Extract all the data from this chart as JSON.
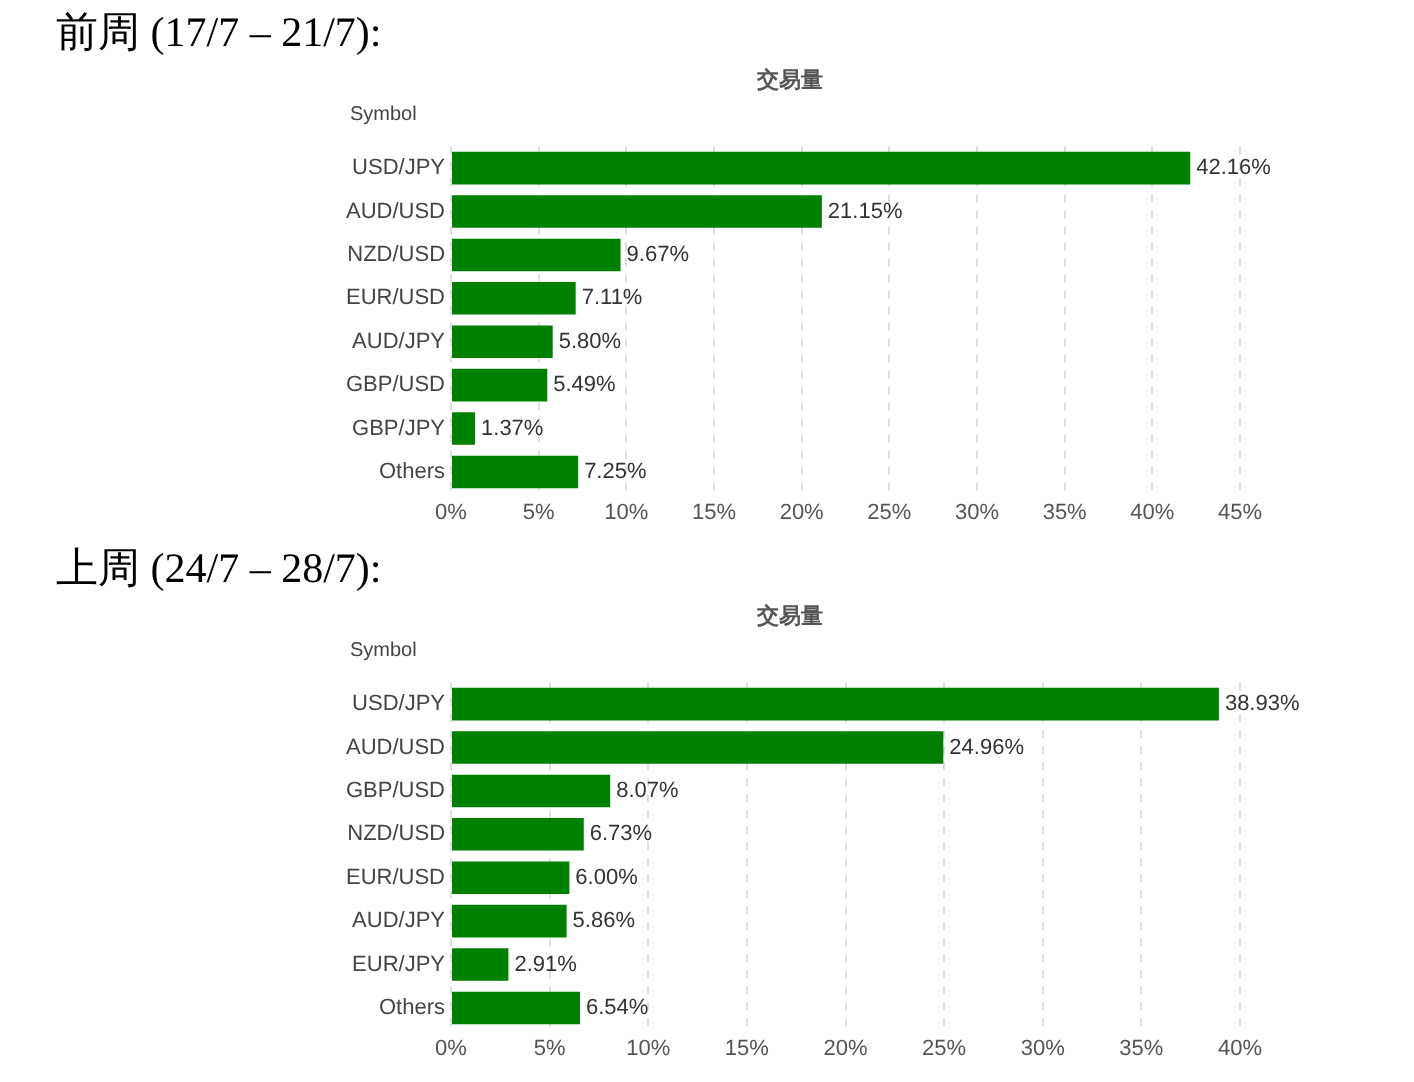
{
  "chart_data": [
    {
      "type": "bar",
      "orientation": "horizontal",
      "title": "前周 (17/7 – 21/7):",
      "subtitle": "交易量",
      "ylabel": "Symbol",
      "categories": [
        "USD/JPY",
        "AUD/USD",
        "NZD/USD",
        "EUR/USD",
        "AUD/JPY",
        "GBP/USD",
        "GBP/JPY",
        "Others"
      ],
      "values": [
        42.16,
        21.15,
        9.67,
        7.11,
        5.8,
        5.49,
        1.37,
        7.25
      ],
      "value_labels": [
        "42.16%",
        "21.15%",
        "9.67%",
        "7.11%",
        "5.80%",
        "5.49%",
        "1.37%",
        "7.25%"
      ],
      "color": "#008000",
      "xlim": [
        0,
        45
      ],
      "xticks": [
        {
          "value": 0,
          "label": "0%"
        },
        {
          "value": 5,
          "label": "5%"
        },
        {
          "value": 10,
          "label": "10%"
        },
        {
          "value": 15,
          "label": "15%"
        },
        {
          "value": 20,
          "label": "20%"
        },
        {
          "value": 25,
          "label": "25%"
        },
        {
          "value": 30,
          "label": "30%"
        },
        {
          "value": 35,
          "label": "35%"
        },
        {
          "value": 40,
          "label": "40%"
        },
        {
          "value": 45,
          "label": "45%"
        }
      ],
      "grid": "x",
      "legend": false
    },
    {
      "type": "bar",
      "orientation": "horizontal",
      "title": "上周 (24/7 – 28/7):",
      "subtitle": "交易量",
      "ylabel": "Symbol",
      "categories": [
        "USD/JPY",
        "AUD/USD",
        "GBP/USD",
        "NZD/USD",
        "EUR/USD",
        "AUD/JPY",
        "EUR/JPY",
        "Others"
      ],
      "values": [
        38.93,
        24.96,
        8.07,
        6.73,
        6.0,
        5.86,
        2.91,
        6.54
      ],
      "value_labels": [
        "38.93%",
        "24.96%",
        "8.07%",
        "6.73%",
        "6.00%",
        "5.86%",
        "2.91%",
        "6.54%"
      ],
      "color": "#008000",
      "xlim": [
        0,
        40
      ],
      "xticks": [
        {
          "value": 0,
          "label": "0%"
        },
        {
          "value": 5,
          "label": "5%"
        },
        {
          "value": 10,
          "label": "10%"
        },
        {
          "value": 15,
          "label": "15%"
        },
        {
          "value": 20,
          "label": "20%"
        },
        {
          "value": 25,
          "label": "25%"
        },
        {
          "value": 30,
          "label": "30%"
        },
        {
          "value": 35,
          "label": "35%"
        },
        {
          "value": 40,
          "label": "40%"
        }
      ],
      "grid": "x",
      "legend": false
    }
  ]
}
